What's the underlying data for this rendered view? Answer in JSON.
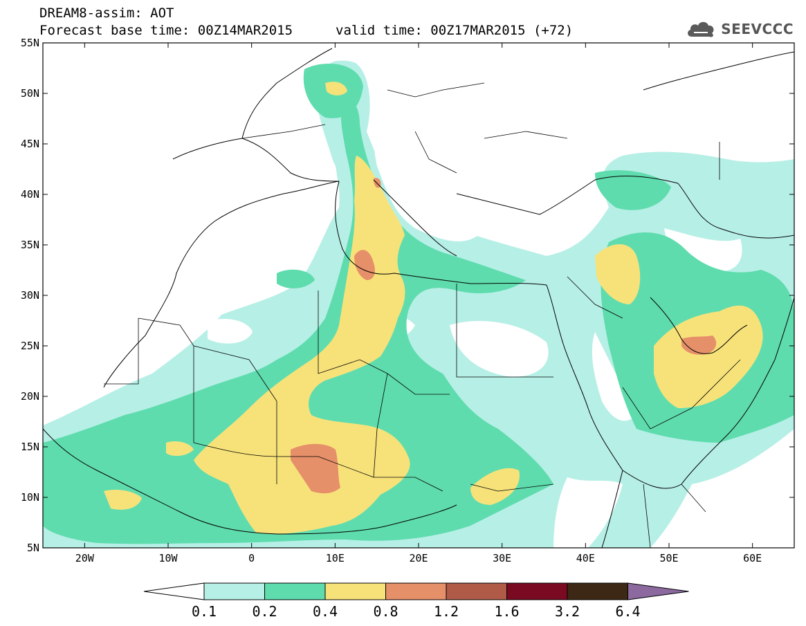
{
  "header": {
    "line1": "DREAM8-assim: AOT",
    "line2": "Forecast base time: 00Z14MAR2015",
    "line3": "valid time: 00Z17MAR2015 (+72)"
  },
  "logo": {
    "text": "SEEVCCC",
    "icon": "cloud-logo-icon"
  },
  "axes": {
    "lat_labels": [
      "55N",
      "50N",
      "45N",
      "40N",
      "35N",
      "30N",
      "25N",
      "20N",
      "15N",
      "10N",
      "5N"
    ],
    "lon_labels": [
      "20W",
      "10W",
      "0",
      "10E",
      "20E",
      "30E",
      "40E",
      "50E",
      "60E"
    ],
    "lon_range": [
      -25,
      65
    ],
    "lat_range": [
      5,
      55
    ]
  },
  "colorbar": {
    "levels": [
      "0.1",
      "0.2",
      "0.4",
      "0.8",
      "1.2",
      "1.6",
      "3.2",
      "6.4"
    ],
    "colors": [
      "#ffffff",
      "#b6efe6",
      "#5fdcae",
      "#f7e27a",
      "#e6906a",
      "#b05a48",
      "#7a0a22",
      "#3c2814",
      "#8c6aa0"
    ]
  },
  "map_layers": {
    "colors": {
      "c02": "#b6efe6",
      "c04": "#5fdcae",
      "c08": "#f7e27a",
      "c12": "#e6906a",
      "border": "#000000"
    }
  }
}
